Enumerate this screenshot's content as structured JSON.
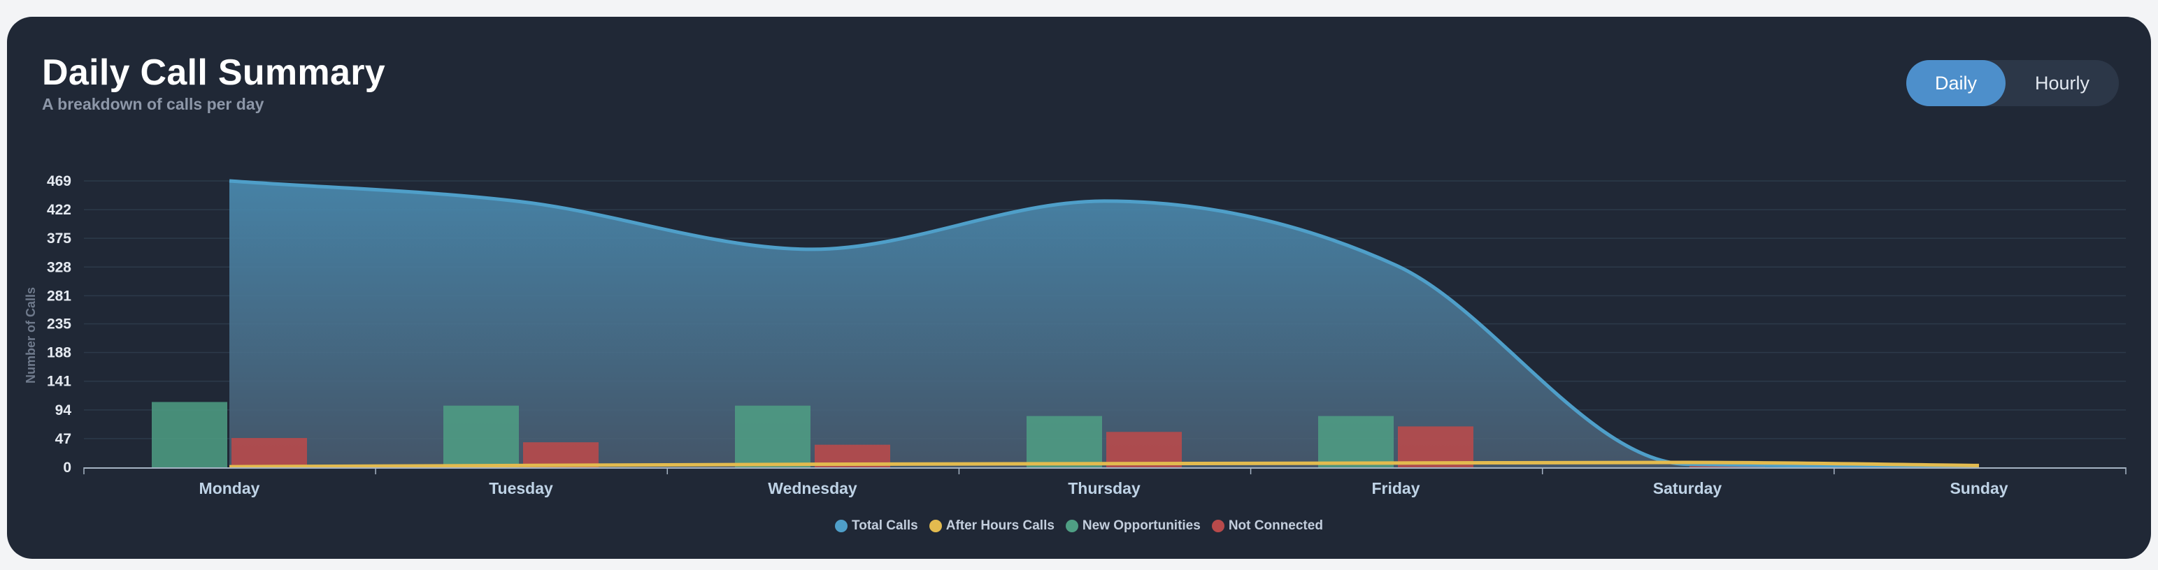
{
  "card": {
    "title": "Daily Call Summary",
    "subtitle": "A breakdown of calls per day"
  },
  "toggle": {
    "options": [
      "Daily",
      "Hourly"
    ],
    "selected": "Daily"
  },
  "colors": {
    "total": "#4f9fc9",
    "after_hours": "#e3bb4f",
    "new_opps": "#4f9f84",
    "not_connected": "#b84a4b"
  },
  "chart_data": {
    "type": "bar",
    "title": "Daily Call Summary",
    "xlabel": "",
    "ylabel": "Number of Calls",
    "ylim": [
      0,
      469
    ],
    "yticks": [
      0,
      47,
      94,
      141,
      188,
      235,
      281,
      328,
      375,
      422,
      469
    ],
    "categories": [
      "Monday",
      "Tuesday",
      "Wednesday",
      "Thursday",
      "Friday",
      "Saturday",
      "Sunday"
    ],
    "legend_position": "bottom-center",
    "series": [
      {
        "name": "Total Calls",
        "kind": "area",
        "values": [
          469,
          435,
          357,
          436,
          331,
          5,
          2
        ]
      },
      {
        "name": "After Hours Calls",
        "kind": "line",
        "values": [
          1,
          3,
          5,
          6,
          7,
          8,
          3
        ]
      },
      {
        "name": "New Opportunities",
        "kind": "bar",
        "values": [
          107,
          101,
          101,
          84,
          84,
          0,
          0
        ]
      },
      {
        "name": "Not Connected",
        "kind": "bar",
        "values": [
          48,
          41,
          37,
          58,
          67,
          2,
          0
        ]
      }
    ]
  }
}
